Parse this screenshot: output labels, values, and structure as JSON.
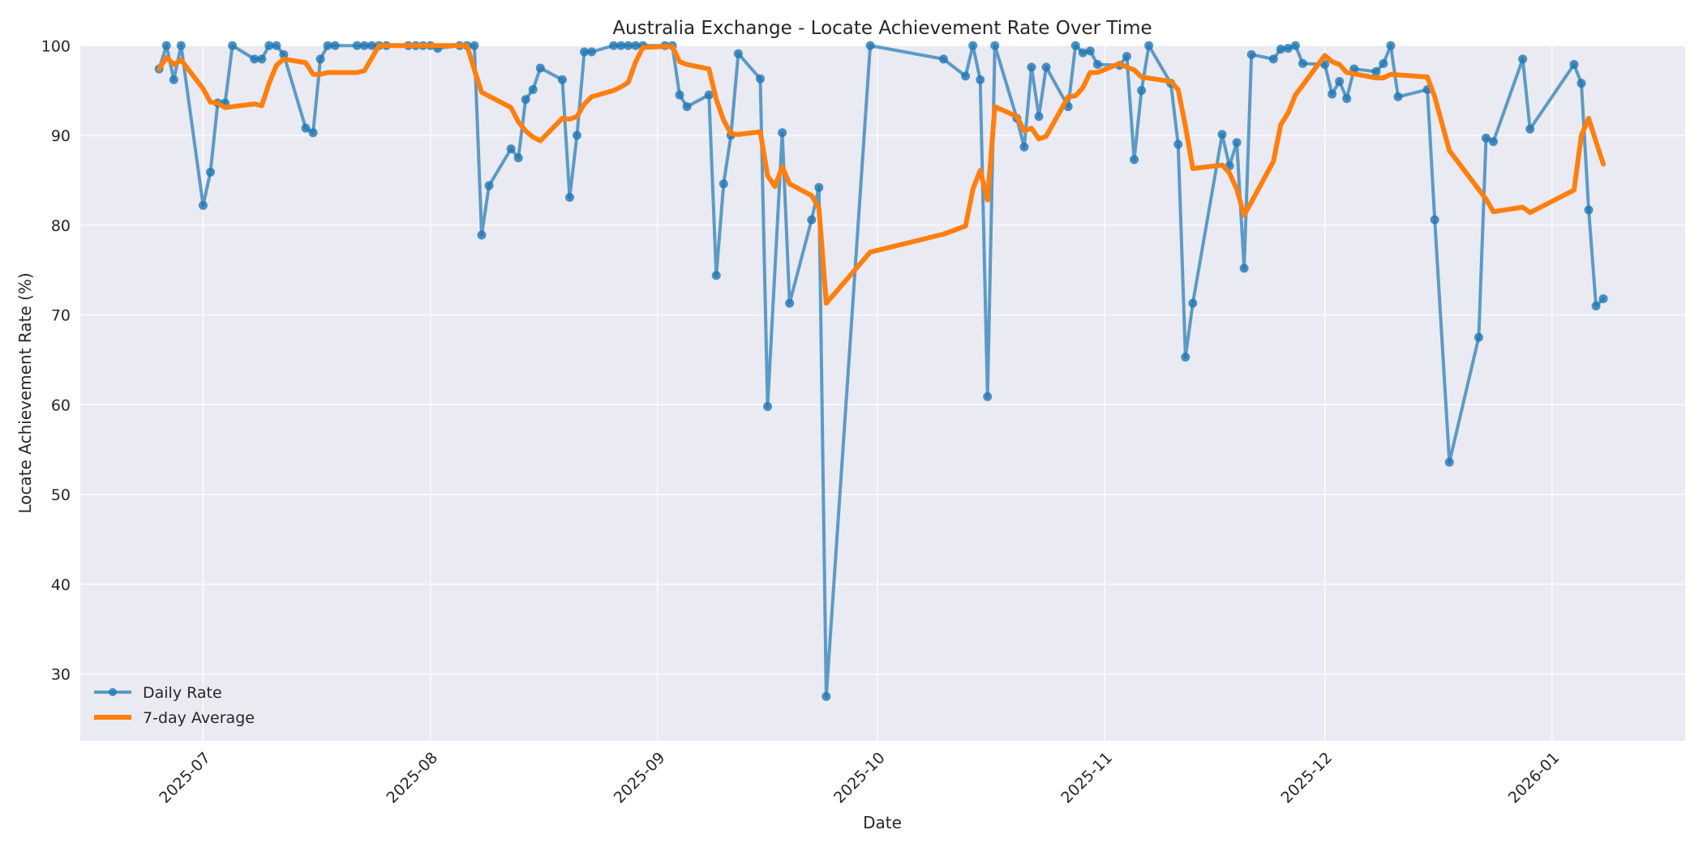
{
  "chart_data": {
    "type": "line",
    "title": "Australia Exchange - Locate Achievement Rate Over Time",
    "xlabel": "Date",
    "ylabel": "Locate Achievement Rate (%)",
    "ylim": [
      22.5,
      100
    ],
    "yticks": [
      30,
      40,
      50,
      60,
      70,
      80,
      90,
      100
    ],
    "xticks": [
      "2025-07",
      "2025-08",
      "2025-09",
      "2025-10",
      "2025-11",
      "2025-12",
      "2026-01"
    ],
    "xtick_days": [
      30,
      61,
      92,
      122,
      153,
      183,
      214
    ],
    "grid": true,
    "legend_position": "lower left",
    "colors": {
      "daily": "#1f77b4",
      "avg": "#ff7f0e",
      "plot_bg": "#eaeaf2",
      "grid": "#ffffff"
    },
    "series": [
      {
        "name": "Daily Rate",
        "marker": "o",
        "points_note": "[day offset from 2025-06-01, value]",
        "points": [
          [
            24,
            97.4
          ],
          [
            25,
            100
          ],
          [
            26,
            96.2
          ],
          [
            27,
            100
          ],
          [
            30,
            82.2
          ],
          [
            31,
            85.9
          ],
          [
            32,
            93.6
          ],
          [
            33,
            93.6
          ],
          [
            34,
            100
          ],
          [
            37,
            98.5
          ],
          [
            38,
            98.5
          ],
          [
            39,
            100
          ],
          [
            40,
            100
          ],
          [
            41,
            99
          ],
          [
            44,
            90.8
          ],
          [
            45,
            90.3
          ],
          [
            46,
            98.5
          ],
          [
            47,
            100
          ],
          [
            48,
            100
          ],
          [
            51,
            100
          ],
          [
            52,
            100
          ],
          [
            53,
            100
          ],
          [
            54,
            100
          ],
          [
            55,
            100
          ],
          [
            58,
            100
          ],
          [
            59,
            100
          ],
          [
            60,
            100
          ],
          [
            61,
            100
          ],
          [
            62,
            99.7
          ],
          [
            65,
            100
          ],
          [
            66,
            100
          ],
          [
            67,
            100
          ],
          [
            68,
            78.9
          ],
          [
            69,
            84.4
          ],
          [
            72,
            88.5
          ],
          [
            73,
            87.5
          ],
          [
            74,
            94
          ],
          [
            75,
            95.1
          ],
          [
            76,
            97.5
          ],
          [
            79,
            96.2
          ],
          [
            80,
            83.1
          ],
          [
            81,
            90
          ],
          [
            82,
            99.3
          ],
          [
            83,
            99.3
          ],
          [
            86,
            100
          ],
          [
            87,
            100
          ],
          [
            88,
            100
          ],
          [
            89,
            100
          ],
          [
            90,
            100
          ],
          [
            93,
            100
          ],
          [
            94,
            100
          ],
          [
            95,
            94.5
          ],
          [
            96,
            93.2
          ],
          [
            99,
            94.5
          ],
          [
            100,
            74.4
          ],
          [
            101,
            84.6
          ],
          [
            102,
            90
          ],
          [
            103,
            99.1
          ],
          [
            106,
            96.3
          ],
          [
            107,
            59.8
          ],
          [
            109,
            90.3
          ],
          [
            110,
            71.3
          ],
          [
            113,
            80.6
          ],
          [
            114,
            84.2
          ],
          [
            115,
            27.5
          ],
          [
            121,
            100
          ],
          [
            131,
            98.5
          ],
          [
            134,
            96.6
          ],
          [
            135,
            100
          ],
          [
            136,
            96.2
          ],
          [
            137,
            60.9
          ],
          [
            138,
            100
          ],
          [
            141,
            91.9
          ],
          [
            142,
            88.7
          ],
          [
            143,
            97.6
          ],
          [
            144,
            92.1
          ],
          [
            145,
            97.6
          ],
          [
            148,
            93.2
          ],
          [
            149,
            100
          ],
          [
            150,
            99.2
          ],
          [
            151,
            99.4
          ],
          [
            152,
            97.9
          ],
          [
            155,
            97.8
          ],
          [
            156,
            98.8
          ],
          [
            157,
            87.3
          ],
          [
            158,
            95
          ],
          [
            159,
            100
          ],
          [
            162,
            95.8
          ],
          [
            163,
            89
          ],
          [
            164,
            65.3
          ],
          [
            165,
            71.3
          ],
          [
            169,
            90.1
          ],
          [
            170,
            86.6
          ],
          [
            171,
            89.2
          ],
          [
            172,
            75.2
          ],
          [
            173,
            99
          ],
          [
            176,
            98.5
          ],
          [
            177,
            99.6
          ],
          [
            178,
            99.7
          ],
          [
            179,
            100
          ],
          [
            180,
            98
          ],
          [
            183,
            97.9
          ],
          [
            184,
            94.6
          ],
          [
            185,
            96
          ],
          [
            186,
            94.1
          ],
          [
            187,
            97.4
          ],
          [
            190,
            97.1
          ],
          [
            191,
            98
          ],
          [
            192,
            100
          ],
          [
            193,
            94.3
          ],
          [
            197,
            95.1
          ],
          [
            198,
            80.6
          ],
          [
            200,
            53.6
          ],
          [
            204,
            67.5
          ],
          [
            205,
            89.7
          ],
          [
            206,
            89.3
          ],
          [
            210,
            98.5
          ],
          [
            211,
            90.7
          ],
          [
            217,
            97.9
          ],
          [
            218,
            95.8
          ],
          [
            219,
            81.7
          ],
          [
            220,
            71
          ],
          [
            221,
            71.8
          ]
        ]
      },
      {
        "name": "7-day Average",
        "marker": "none",
        "points": [
          [
            24,
            97.4
          ],
          [
            25,
            98.7
          ],
          [
            26,
            97.9
          ],
          [
            27,
            98.4
          ],
          [
            30,
            95.2
          ],
          [
            31,
            93.7
          ],
          [
            32,
            93.6
          ],
          [
            33,
            93.1
          ],
          [
            37,
            93.5
          ],
          [
            38,
            93.3
          ],
          [
            39,
            95.8
          ],
          [
            40,
            97.8
          ],
          [
            41,
            98.5
          ],
          [
            44,
            98.1
          ],
          [
            45,
            96.8
          ],
          [
            46,
            96.8
          ],
          [
            47,
            97
          ],
          [
            51,
            97
          ],
          [
            52,
            97.2
          ],
          [
            54,
            100
          ],
          [
            55,
            100
          ],
          [
            58,
            100
          ],
          [
            61,
            100
          ],
          [
            65,
            100
          ],
          [
            66,
            100
          ],
          [
            67,
            97.3
          ],
          [
            68,
            94.8
          ],
          [
            72,
            93.1
          ],
          [
            73,
            91.5
          ],
          [
            74,
            90.5
          ],
          [
            75,
            89.8
          ],
          [
            76,
            89.4
          ],
          [
            79,
            91.9
          ],
          [
            80,
            91.8
          ],
          [
            81,
            92.1
          ],
          [
            82,
            93.5
          ],
          [
            83,
            94.3
          ],
          [
            86,
            95
          ],
          [
            87,
            95.4
          ],
          [
            88,
            95.9
          ],
          [
            89,
            98.2
          ],
          [
            90,
            99.8
          ],
          [
            93,
            99.9
          ],
          [
            94,
            99.9
          ],
          [
            95,
            98.2
          ],
          [
            96,
            97.9
          ],
          [
            99,
            97.4
          ],
          [
            100,
            94
          ],
          [
            101,
            91.7
          ],
          [
            102,
            90.2
          ],
          [
            103,
            90.1
          ],
          [
            106,
            90.4
          ],
          [
            107,
            85.5
          ],
          [
            108,
            84.3
          ],
          [
            109,
            86.5
          ],
          [
            110,
            84.6
          ],
          [
            113,
            83.3
          ],
          [
            114,
            81.9
          ],
          [
            115,
            71.3
          ],
          [
            121,
            77
          ],
          [
            131,
            79
          ],
          [
            134,
            79.9
          ],
          [
            135,
            84
          ],
          [
            136,
            86.1
          ],
          [
            137,
            82.8
          ],
          [
            138,
            93.2
          ],
          [
            141,
            92.1
          ],
          [
            142,
            90.5
          ],
          [
            143,
            90.8
          ],
          [
            144,
            89.6
          ],
          [
            145,
            89.9
          ],
          [
            148,
            94.3
          ],
          [
            149,
            94.4
          ],
          [
            150,
            95.3
          ],
          [
            151,
            97
          ],
          [
            152,
            97
          ],
          [
            155,
            98
          ],
          [
            156,
            97.6
          ],
          [
            157,
            97.3
          ],
          [
            158,
            96.5
          ],
          [
            162,
            96
          ],
          [
            163,
            95.1
          ],
          [
            164,
            91
          ],
          [
            165,
            86.3
          ],
          [
            169,
            86.7
          ],
          [
            170,
            85.8
          ],
          [
            171,
            84
          ],
          [
            172,
            81.1
          ],
          [
            176,
            87.1
          ],
          [
            177,
            91.2
          ],
          [
            178,
            92.5
          ],
          [
            179,
            94.5
          ],
          [
            183,
            98.9
          ],
          [
            184,
            98.2
          ],
          [
            185,
            97.9
          ],
          [
            186,
            97
          ],
          [
            190,
            96.4
          ],
          [
            191,
            96.4
          ],
          [
            192,
            96.8
          ],
          [
            197,
            96.5
          ],
          [
            198,
            94.3
          ],
          [
            200,
            88.3
          ],
          [
            205,
            82.9
          ],
          [
            206,
            81.5
          ],
          [
            210,
            82
          ],
          [
            211,
            81.4
          ],
          [
            217,
            83.9
          ],
          [
            218,
            90
          ],
          [
            219,
            91.9
          ],
          [
            220,
            89.3
          ],
          [
            221,
            86.8
          ]
        ]
      }
    ]
  },
  "legend": {
    "items": [
      {
        "label": "Daily Rate",
        "color": "#1f77b4"
      },
      {
        "label": "7-day Average",
        "color": "#ff7f0e"
      }
    ]
  }
}
